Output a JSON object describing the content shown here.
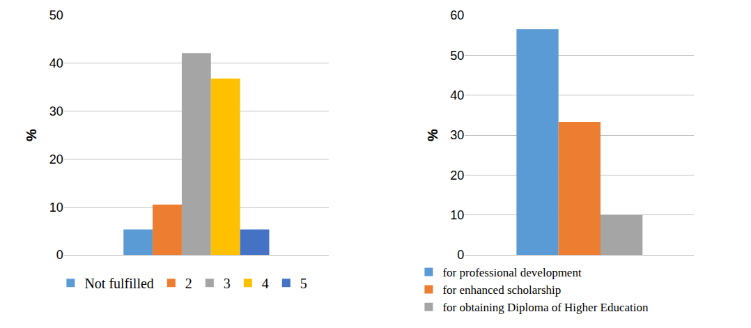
{
  "chart_data": [
    {
      "type": "bar",
      "y_label": "%",
      "series": [
        {
          "name": "Not fulfilled",
          "color": "#5b9bd5",
          "values": [
            5.3
          ]
        },
        {
          "name": "2",
          "color": "#ed7d31",
          "values": [
            10.5
          ]
        },
        {
          "name": "3",
          "color": "#a5a5a5",
          "values": [
            42.1
          ]
        },
        {
          "name": "4",
          "color": "#ffc000",
          "values": [
            36.8
          ]
        },
        {
          "name": "5",
          "color": "#4472c4",
          "values": [
            5.3
          ]
        }
      ],
      "ylim": [
        0,
        50
      ],
      "yticks": [
        0,
        10,
        20,
        30,
        40,
        50
      ],
      "grid": true,
      "legend": "bottom",
      "tick_labels": "y"
    },
    {
      "type": "bar",
      "y_label": "%",
      "series": [
        {
          "name": "for professional development",
          "color": "#5b9bd5",
          "values": [
            56.5
          ]
        },
        {
          "name": "for enhanced scholarship",
          "color": "#ed7d31",
          "values": [
            33.3
          ]
        },
        {
          "name": "for obtaining Diploma of Higher Education",
          "color": "#a5a5a5",
          "values": [
            10
          ]
        }
      ],
      "ylim": [
        0,
        60
      ],
      "yticks": [
        0,
        10,
        20,
        30,
        40,
        50,
        60
      ],
      "grid": true,
      "legend": "bottom",
      "tick_labels": "y"
    }
  ]
}
